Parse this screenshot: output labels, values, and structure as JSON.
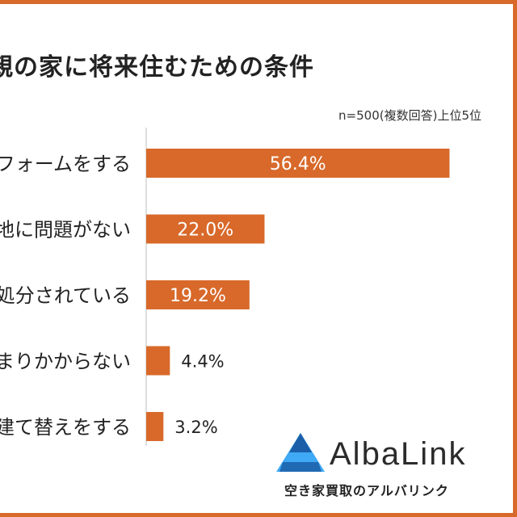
{
  "chart_data": {
    "type": "bar",
    "orientation": "horizontal",
    "title": "親の家に将来住むための条件",
    "note": "n=500(複数回答)上位5位",
    "categories": [
      "リフォームをする",
      "立地に問題がない",
      "処分されている",
      "まりかからない",
      "建て替えをする"
    ],
    "values": [
      56.4,
      22.0,
      19.2,
      4.4,
      3.2
    ],
    "value_labels": [
      "56.4%",
      "22.0%",
      "19.2%",
      "4.4%",
      "3.2%"
    ],
    "unit": "%",
    "xlim": [
      0,
      70
    ],
    "grid": false,
    "bar_color": "#d8692a"
  },
  "branding": {
    "name": "AlbaLink",
    "subtitle": "空き家買取のアルバリンク",
    "colors": {
      "dark": "#1b5fa8",
      "light": "#3fa9f5"
    }
  },
  "frame_color": "#d8692a"
}
